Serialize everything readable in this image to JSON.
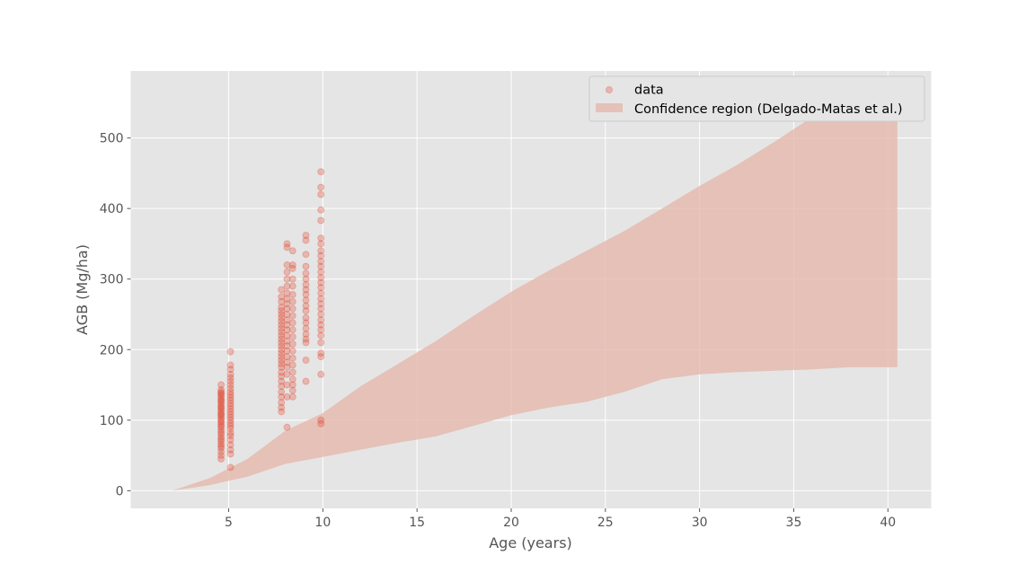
{
  "chart_data": {
    "type": "scatter",
    "title": "",
    "xlabel": "Age (years)",
    "ylabel": "AGB (Mg/ha)",
    "xlim": [
      -0.2,
      42.3
    ],
    "ylim": [
      -25,
      595
    ],
    "x_ticks": [
      5,
      10,
      15,
      20,
      25,
      30,
      35,
      40
    ],
    "y_ticks": [
      0,
      100,
      200,
      300,
      400,
      500
    ],
    "grid": true,
    "legend_position": "top-right",
    "colors": {
      "background": "#e5e5e5",
      "grid": "#ffffff",
      "points": "#e24a33",
      "band": "#e5b8ad"
    },
    "series": [
      {
        "name": "data",
        "kind": "scatter",
        "groups": [
          {
            "x": 4.6,
            "y": [
              45,
              50,
              55,
              60,
              63,
              66,
              70,
              73,
              76,
              80,
              83,
              86,
              90,
              92,
              95,
              98,
              100,
              103,
              106,
              108,
              110,
              113,
              116,
              118,
              120,
              123,
              126,
              128,
              130,
              133,
              136,
              138,
              140,
              143,
              150
            ]
          },
          {
            "x": 5.1,
            "y": [
              33,
              52,
              58,
              65,
              72,
              78,
              82,
              88,
              92,
              96,
              100,
              104,
              108,
              112,
              116,
              120,
              124,
              128,
              132,
              136,
              140,
              145,
              150,
              155,
              160,
              165,
              172,
              178,
              197
            ]
          },
          {
            "x": 7.8,
            "y": [
              112,
              118,
              125,
              133,
              140,
              148,
              155,
              162,
              168,
              175,
              180,
              185,
              190,
              195,
              200,
              205,
              210,
              215,
              220,
              225,
              230,
              235,
              240,
              245,
              250,
              255,
              260,
              268,
              275,
              285
            ]
          },
          {
            "x": 8.1,
            "y": [
              90,
              133,
              150,
              165,
              175,
              182,
              190,
              198,
              205,
              212,
              220,
              228,
              235,
              242,
              250,
              258,
              265,
              272,
              280,
              290,
              300,
              310,
              320,
              345,
              350
            ]
          },
          {
            "x": 8.4,
            "y": [
              133,
              142,
              150,
              158,
              168,
              178,
              188,
              198,
              208,
              218,
              228,
              238,
              248,
              258,
              268,
              278,
              290,
              300,
              315,
              320,
              340
            ]
          },
          {
            "x": 9.1,
            "y": [
              155,
              185,
              210,
              215,
              222,
              230,
              238,
              245,
              255,
              262,
              270,
              278,
              285,
              292,
              300,
              308,
              318,
              335,
              355,
              362
            ]
          },
          {
            "x": 9.9,
            "y": [
              95,
              100,
              165,
              190,
              195,
              210,
              220,
              228,
              235,
              242,
              250,
              258,
              265,
              272,
              280,
              288,
              295,
              302,
              310,
              318,
              325,
              333,
              340,
              350,
              358,
              383,
              398,
              420,
              430,
              452
            ]
          }
        ]
      },
      {
        "name": "Confidence region (Delgado-Matas et al.)",
        "kind": "band",
        "x": [
          2,
          4,
          6,
          8,
          10,
          12,
          14,
          16,
          18,
          20,
          22,
          24,
          26,
          28,
          30,
          32,
          34,
          36,
          38,
          40,
          40.5
        ],
        "lower": [
          0,
          8,
          20,
          38,
          48,
          58,
          68,
          77,
          92,
          107,
          118,
          126,
          140,
          158,
          165,
          168,
          170,
          172,
          175,
          175,
          175
        ],
        "upper": [
          0,
          18,
          45,
          85,
          110,
          148,
          180,
          212,
          248,
          282,
          312,
          340,
          368,
          400,
          432,
          462,
          495,
          530,
          555,
          565,
          570
        ]
      }
    ]
  }
}
